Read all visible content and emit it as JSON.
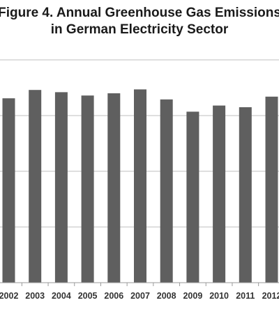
{
  "chart_data": {
    "type": "bar",
    "title_lines": [
      "Figure 4. Annual Greenhouse Gas Emissions",
      "in German Electricity Sector"
    ],
    "categories": [
      "2002",
      "2003",
      "2004",
      "2005",
      "2006",
      "2007",
      "2008",
      "2009",
      "2010",
      "2011",
      "2012"
    ],
    "values": [
      331,
      346,
      342,
      336,
      340,
      347,
      329,
      307,
      318,
      315,
      334
    ],
    "ylim": [
      0,
      400
    ],
    "gridlines": [
      100,
      200,
      300,
      400
    ],
    "grid": true,
    "legend": "none",
    "xlabel": "",
    "ylabel": "",
    "bar_color": "#5f5f5f",
    "grid_color": "#bfbfbf"
  }
}
